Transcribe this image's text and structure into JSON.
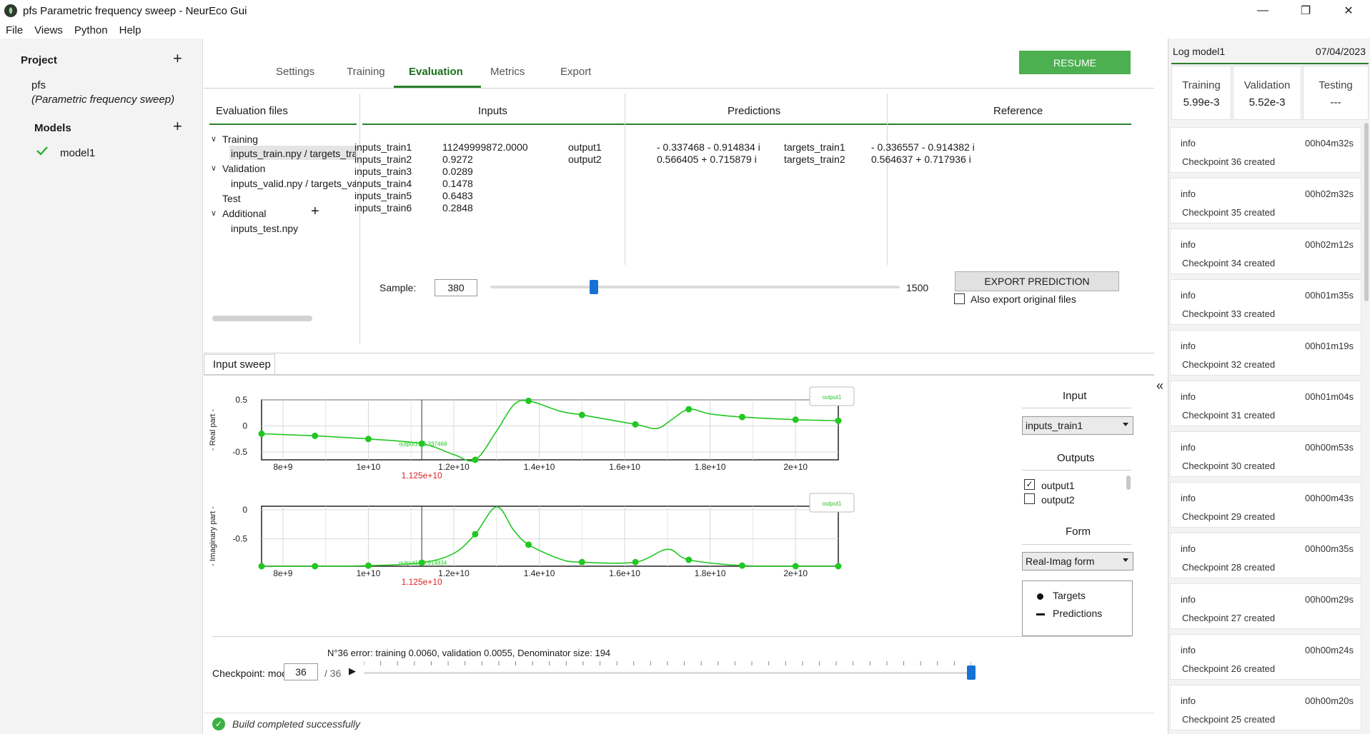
{
  "window": {
    "title": "pfs  Parametric frequency sweep  - NeurEco Gui",
    "controls": [
      "—",
      "❐",
      "✕"
    ]
  },
  "menu": [
    "File",
    "Views",
    "Python",
    "Help"
  ],
  "project": {
    "heading": "Project",
    "name": "pfs",
    "description": "(Parametric frequency sweep)",
    "models_heading": "Models",
    "model": "model1"
  },
  "tabs": [
    "Settings",
    "Training",
    "Evaluation",
    "Metrics",
    "Export"
  ],
  "active_tab": "Evaluation",
  "resume_label": "RESUME",
  "evaluation": {
    "files_header": "Evaluation files",
    "inputs_header": "Inputs",
    "predictions_header": "Predictions",
    "reference_header": "Reference",
    "tree": {
      "training": "Training",
      "training_file": "inputs_train.npy / targets_tra",
      "validation": "Validation",
      "validation_file": "inputs_valid.npy / targets_va",
      "test": "Test",
      "additional": "Additional",
      "additional_file": "inputs_test.npy"
    },
    "inputs": [
      {
        "name": "inputs_train1",
        "value": "11249999872.0000"
      },
      {
        "name": "inputs_train2",
        "value": "0.9272"
      },
      {
        "name": "inputs_train3",
        "value": "0.0289"
      },
      {
        "name": "inputs_train4",
        "value": "0.1478"
      },
      {
        "name": "inputs_train5",
        "value": "0.6483"
      },
      {
        "name": "inputs_train6",
        "value": "0.2848"
      }
    ],
    "predictions": [
      {
        "name": "output1",
        "value": "- 0.337468 - 0.914834 i"
      },
      {
        "name": "output2",
        "value": "0.566405 + 0.715879 i"
      }
    ],
    "reference": [
      {
        "name": "targets_train1",
        "value": "- 0.336557 - 0.914382 i"
      },
      {
        "name": "targets_train2",
        "value": "0.564637 + 0.717936 i"
      }
    ],
    "sample_label": "Sample:",
    "sample_value": "380",
    "sample_max": "1500",
    "sample_fraction": 0.253,
    "export_button": "EXPORT PREDICTION",
    "also_export": "Also export original files"
  },
  "sweep": {
    "tab_label": "Input sweep",
    "input_title": "Input",
    "input_selected": "inputs_train1",
    "outputs_title": "Outputs",
    "outputs": [
      {
        "name": "output1",
        "checked": true
      },
      {
        "name": "output2",
        "checked": false
      }
    ],
    "form_title": "Form",
    "form_selected": "Real-Imag form",
    "legend_targets": "Targets",
    "legend_predictions": "Predictions",
    "error_text": "N°36 error: training 0.0060, validation 0.0055, Denominator size: 194",
    "checkpoint_label": "Checkpoint: model",
    "checkpoint_value": "36",
    "checkpoint_total": "/ 36",
    "checkpoint_fraction": 1.0
  },
  "chart_data": [
    {
      "type": "line",
      "ylabel": "- Real part -",
      "xlim": [
        7500000000.0,
        21000000000.0
      ],
      "ylim": [
        -0.65,
        0.5
      ],
      "xticks": [
        {
          "v": 8000000000.0,
          "label": "8e+9"
        },
        {
          "v": 10000000000.0,
          "label": "1e+10"
        },
        {
          "v": 12000000000.0,
          "label": "1.2e+10"
        },
        {
          "v": 14000000000.0,
          "label": "1.4e+10"
        },
        {
          "v": 16000000000.0,
          "label": "1.6e+10"
        },
        {
          "v": 18000000000.0,
          "label": "1.8e+10"
        },
        {
          "v": 20000000000.0,
          "label": "2e+10"
        }
      ],
      "yticks": [
        {
          "v": 0.5,
          "label": "0.5"
        },
        {
          "v": 0,
          "label": "0"
        },
        {
          "v": -0.5,
          "label": "-0.5"
        }
      ],
      "marker_x": 11250000000.0,
      "marker_label": "1.125e+10",
      "cursor_label": "output1: -0.337468",
      "legend_label": "output1",
      "grid": true,
      "series": [
        {
          "name": "output1",
          "targets": [
            [
              7500000000.0,
              -0.15
            ],
            [
              8750000000.0,
              -0.19
            ],
            [
              10000000000.0,
              -0.25
            ],
            [
              11250000000.0,
              -0.34
            ],
            [
              12500000000.0,
              -0.65
            ],
            [
              13750000000.0,
              0.48
            ],
            [
              15000000000.0,
              0.21
            ],
            [
              16250000000.0,
              0.03
            ],
            [
              17500000000.0,
              0.32
            ],
            [
              18750000000.0,
              0.17
            ],
            [
              20000000000.0,
              0.12
            ],
            [
              21000000000.0,
              0.1
            ]
          ],
          "predictions": [
            [
              7500000000.0,
              -0.15
            ],
            [
              8750000000.0,
              -0.19
            ],
            [
              10000000000.0,
              -0.25
            ],
            [
              11250000000.0,
              -0.34
            ],
            [
              12000000000.0,
              -0.55
            ],
            [
              12500000000.0,
              -0.65
            ],
            [
              13000000000.0,
              -0.1
            ],
            [
              13400000000.0,
              0.4
            ],
            [
              13750000000.0,
              0.48
            ],
            [
              14500000000.0,
              0.28
            ],
            [
              15000000000.0,
              0.21
            ],
            [
              16250000000.0,
              0.03
            ],
            [
              16750000000.0,
              -0.05
            ],
            [
              17100000000.0,
              0.12
            ],
            [
              17500000000.0,
              0.32
            ],
            [
              18000000000.0,
              0.23
            ],
            [
              18750000000.0,
              0.17
            ],
            [
              20000000000.0,
              0.12
            ],
            [
              21000000000.0,
              0.1
            ]
          ]
        }
      ]
    },
    {
      "type": "line",
      "ylabel": "- Imaginary part -",
      "xlim": [
        7500000000.0,
        21000000000.0
      ],
      "ylim": [
        -0.97,
        0.06
      ],
      "xticks": [
        {
          "v": 8000000000.0,
          "label": "8e+9"
        },
        {
          "v": 10000000000.0,
          "label": "1e+10"
        },
        {
          "v": 12000000000.0,
          "label": "1.2e+10"
        },
        {
          "v": 14000000000.0,
          "label": "1.4e+10"
        },
        {
          "v": 16000000000.0,
          "label": "1.6e+10"
        },
        {
          "v": 18000000000.0,
          "label": "1.8e+10"
        },
        {
          "v": 20000000000.0,
          "label": "2e+10"
        }
      ],
      "yticks": [
        {
          "v": 0,
          "label": "0"
        },
        {
          "v": -0.5,
          "label": "-0.5"
        }
      ],
      "marker_x": 11250000000.0,
      "marker_label": "1.125e+10",
      "cursor_label": "output1: -0.914834",
      "legend_label": "output1",
      "grid": true,
      "series": [
        {
          "name": "output1",
          "targets": [
            [
              7500000000.0,
              -0.97
            ],
            [
              8750000000.0,
              -0.97
            ],
            [
              10000000000.0,
              -0.96
            ],
            [
              11250000000.0,
              -0.91
            ],
            [
              12500000000.0,
              -0.42
            ],
            [
              13750000000.0,
              -0.6
            ],
            [
              15000000000.0,
              -0.9
            ],
            [
              16250000000.0,
              -0.9
            ],
            [
              17500000000.0,
              -0.86
            ],
            [
              18750000000.0,
              -0.96
            ],
            [
              20000000000.0,
              -0.97
            ],
            [
              21000000000.0,
              -0.97
            ]
          ],
          "predictions": [
            [
              7500000000.0,
              -0.97
            ],
            [
              8750000000.0,
              -0.97
            ],
            [
              10000000000.0,
              -0.96
            ],
            [
              11250000000.0,
              -0.91
            ],
            [
              12000000000.0,
              -0.75
            ],
            [
              12500000000.0,
              -0.42
            ],
            [
              13000000000.0,
              0.05
            ],
            [
              13400000000.0,
              -0.35
            ],
            [
              13750000000.0,
              -0.6
            ],
            [
              14500000000.0,
              -0.85
            ],
            [
              15000000000.0,
              -0.9
            ],
            [
              16250000000.0,
              -0.9
            ],
            [
              17000000000.0,
              -0.68
            ],
            [
              17500000000.0,
              -0.86
            ],
            [
              18750000000.0,
              -0.96
            ],
            [
              20000000000.0,
              -0.97
            ],
            [
              21000000000.0,
              -0.97
            ]
          ]
        }
      ]
    }
  ],
  "log": {
    "title": "Log model1",
    "date": "07/04/2023",
    "metrics": [
      {
        "label": "Training",
        "value": "5.99e-3"
      },
      {
        "label": "Validation",
        "value": "5.52e-3"
      },
      {
        "label": "Testing",
        "value": "---"
      }
    ],
    "items": [
      {
        "level": "info",
        "time": "00h04m32s",
        "message": "Checkpoint 36 created"
      },
      {
        "level": "info",
        "time": "00h02m32s",
        "message": "Checkpoint 35 created"
      },
      {
        "level": "info",
        "time": "00h02m12s",
        "message": "Checkpoint 34 created"
      },
      {
        "level": "info",
        "time": "00h01m35s",
        "message": "Checkpoint 33 created"
      },
      {
        "level": "info",
        "time": "00h01m19s",
        "message": "Checkpoint 32 created"
      },
      {
        "level": "info",
        "time": "00h01m04s",
        "message": "Checkpoint 31 created"
      },
      {
        "level": "info",
        "time": "00h00m53s",
        "message": "Checkpoint 30 created"
      },
      {
        "level": "info",
        "time": "00h00m43s",
        "message": "Checkpoint 29 created"
      },
      {
        "level": "info",
        "time": "00h00m35s",
        "message": "Checkpoint 28 created"
      },
      {
        "level": "info",
        "time": "00h00m29s",
        "message": "Checkpoint 27 created"
      },
      {
        "level": "info",
        "time": "00h00m24s",
        "message": "Checkpoint 26 created"
      },
      {
        "level": "info",
        "time": "00h00m20s",
        "message": "Checkpoint 25 created"
      }
    ]
  },
  "status_text": "Build completed successfully",
  "colors": {
    "accent": "#2a7f2a",
    "plot": "#22c722",
    "resume": "#4caf50",
    "marker_label": "#e02020",
    "slider": "#1672d4"
  }
}
